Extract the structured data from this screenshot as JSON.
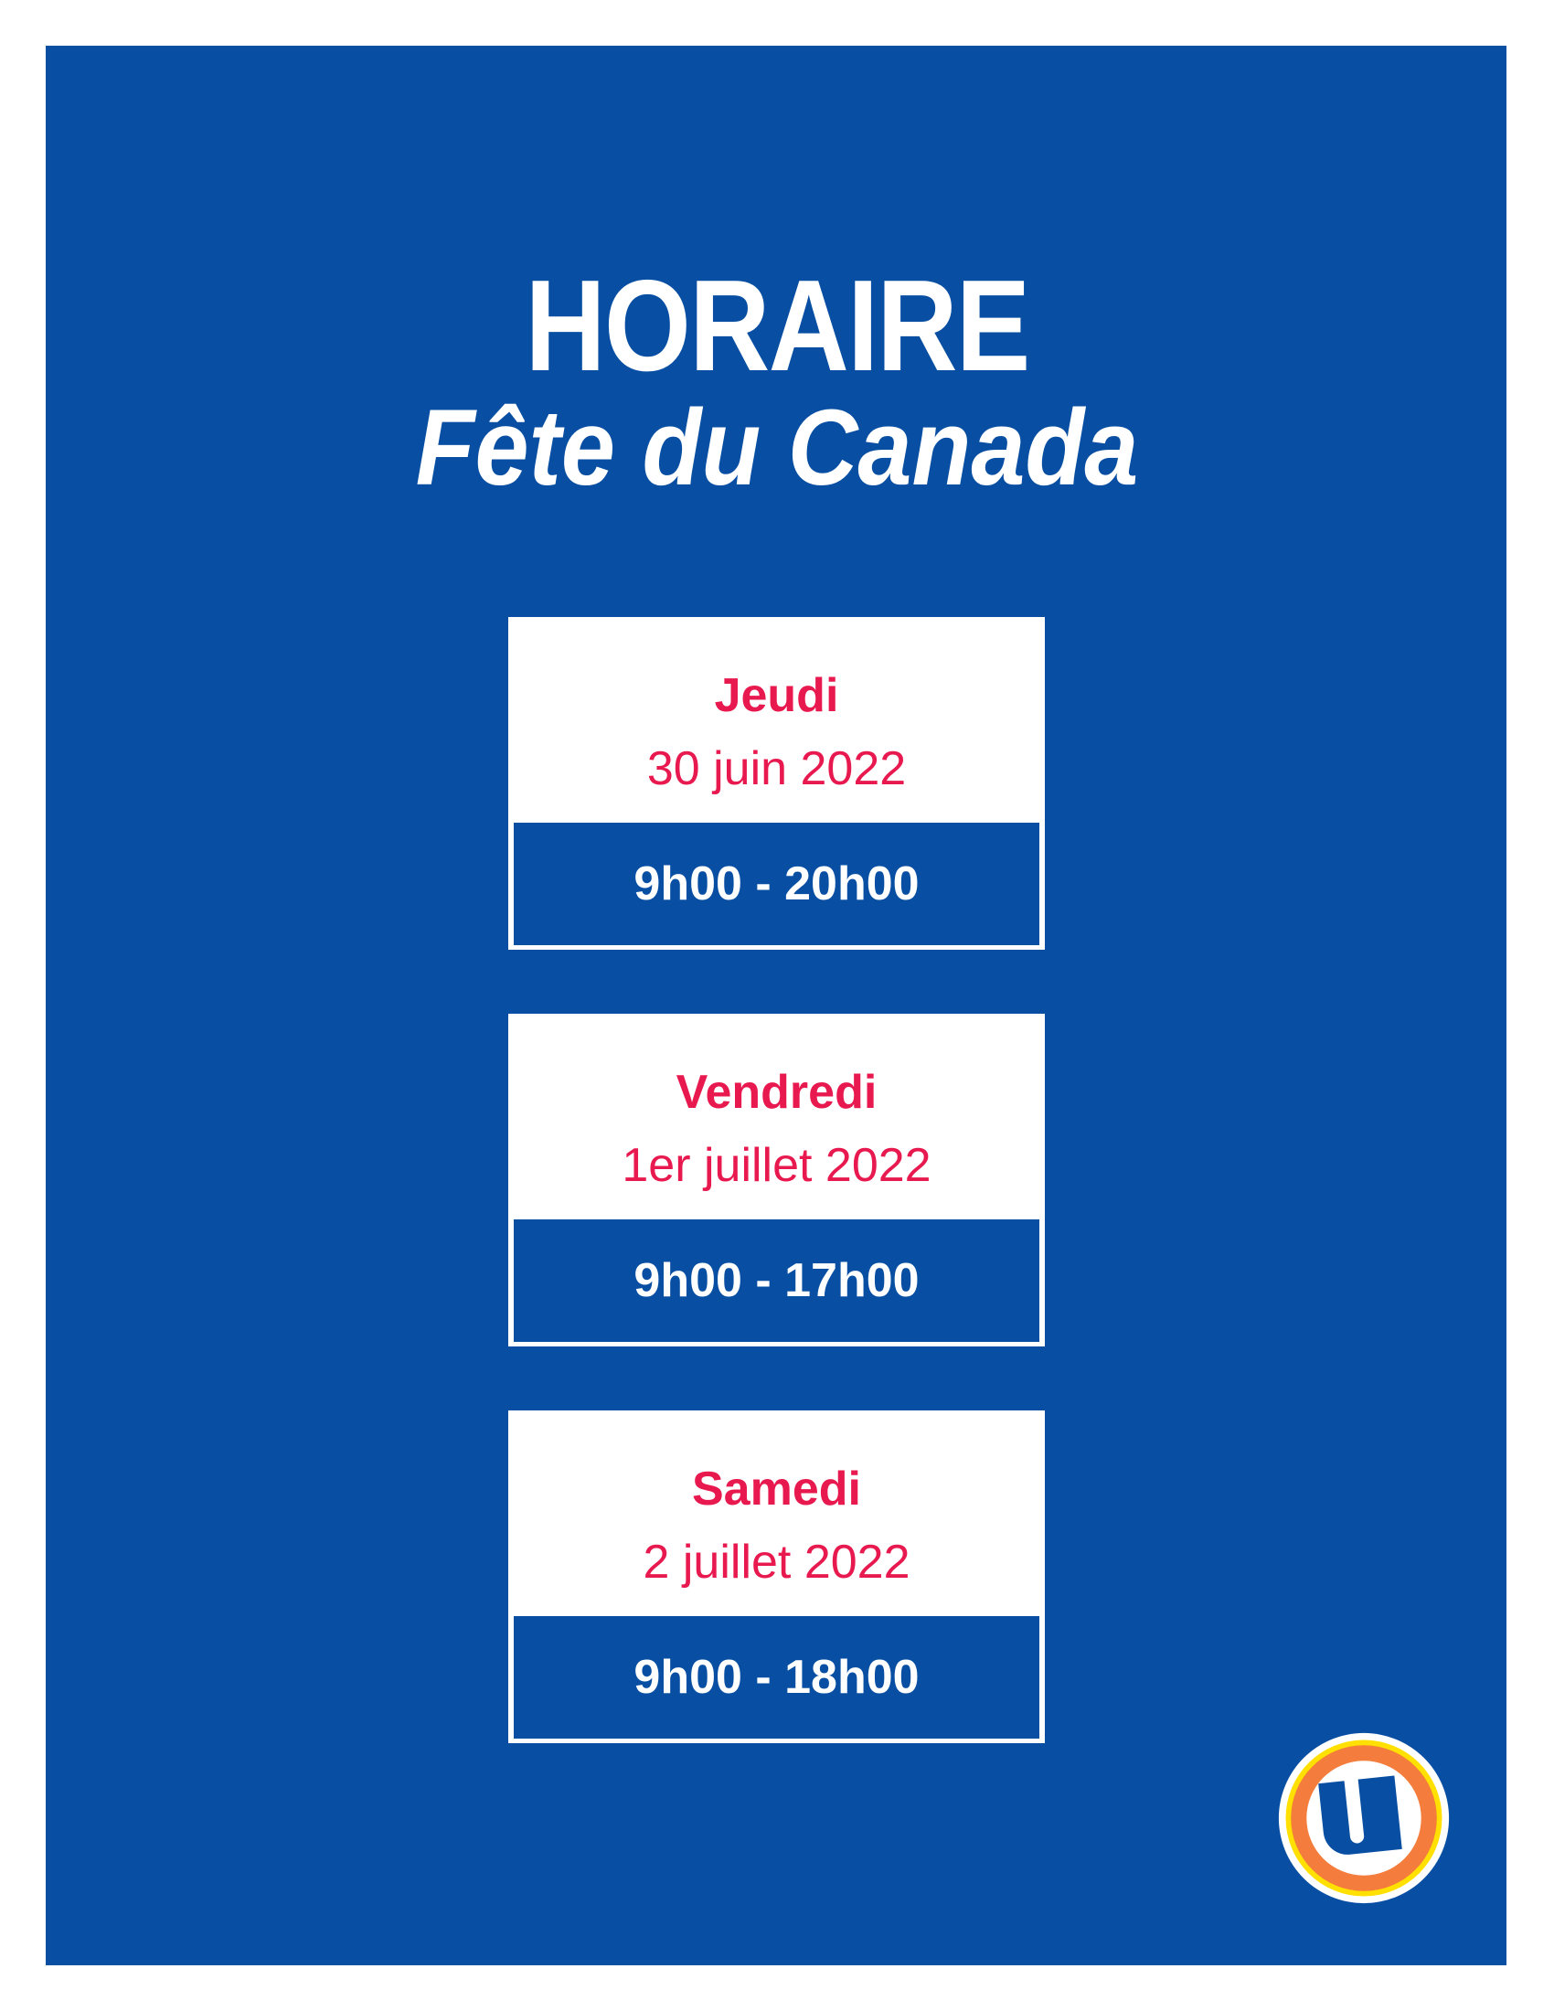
{
  "colors": {
    "blue": "#084FA3",
    "red": "#E8194F",
    "orange": "#F47C3C",
    "yellow": "#FFE000"
  },
  "header": {
    "title": "HORAIRE",
    "subtitle": "Fête du Canada"
  },
  "schedule": [
    {
      "day": "Jeudi",
      "date": "30 juin 2022",
      "hours": "9h00 - 20h00"
    },
    {
      "day": "Vendredi",
      "date": "1er juillet 2022",
      "hours": "9h00 - 17h00"
    },
    {
      "day": "Samedi",
      "date": "2 juillet 2022",
      "hours": "9h00 - 18h00"
    }
  ],
  "logo": {
    "letter": "U"
  }
}
